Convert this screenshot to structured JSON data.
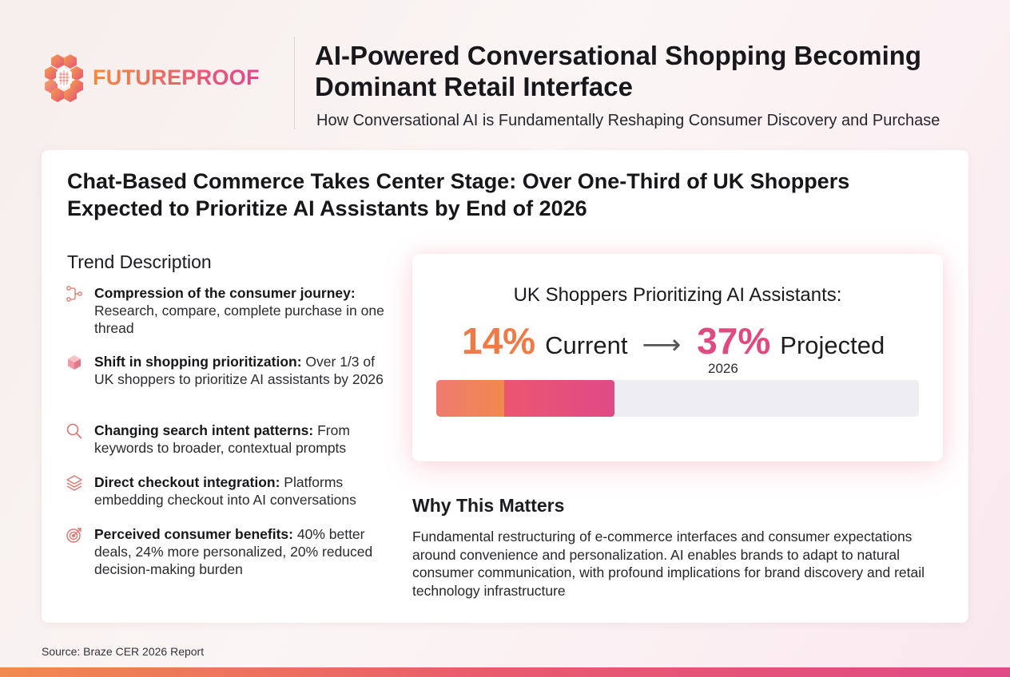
{
  "brand": {
    "name": "FUTUREPROOF",
    "logo_icon": "hexagon-cluster-icon",
    "colors": {
      "orange": "#f08a3e",
      "pink": "#e04a86"
    }
  },
  "header": {
    "title": "AI-Powered Conversational Shopping Becoming Dominant Retail Interface",
    "subtitle": "How Conversational AI is Fundamentally Reshaping Consumer Discovery and Purchase"
  },
  "card": {
    "headline": "Chat-Based Commerce Takes Center Stage: Over One-Third of UK Shoppers Expected to Prioritize AI Assistants by End of 2026"
  },
  "trend": {
    "heading": "Trend Description",
    "items": [
      {
        "icon": "journey-path-icon",
        "title": "Compression of the consumer journey:",
        "text": "Research, compare, complete purchase in one thread"
      },
      {
        "icon": "cube-icon",
        "title": "Shift in shopping prioritization:",
        "text": "Over 1/3 of UK shoppers to prioritize AI assistants by 2026"
      },
      {
        "icon": "search-icon",
        "title": "Changing search intent patterns:",
        "text": "From keywords to broader, contextual prompts"
      },
      {
        "icon": "layers-icon",
        "title": "Direct checkout integration:",
        "text": "Platforms embedding checkout into AI conversations"
      },
      {
        "icon": "target-icon",
        "title": "Perceived consumer benefits:",
        "text": "40% better deals, 24% more personalized, 20% reduced decision-making burden"
      }
    ]
  },
  "stat": {
    "title": "UK Shoppers Prioritizing AI Assistants:",
    "current_value": "14%",
    "current_label": "Current",
    "arrow_icon": "arrow-right-icon",
    "projected_value": "37%",
    "projected_label": "Projected",
    "projected_year": "2026",
    "current_fraction": 0.14,
    "projected_fraction": 0.37,
    "colors": {
      "current": "#f07a45",
      "projected": "#e04a80",
      "track": "#eeedf1"
    }
  },
  "why": {
    "heading": "Why This Matters",
    "body": "Fundamental restructuring of e-commerce interfaces and consumer expectations around convenience and personalization. AI enables brands to adapt to natural consumer communication, with profound implications for brand discovery and retail technology infrastructure"
  },
  "source": "Source: Braze CER 2026 Report"
}
